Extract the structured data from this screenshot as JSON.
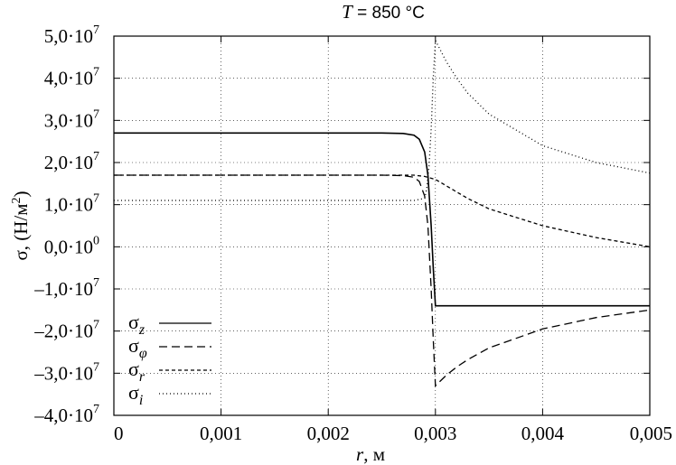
{
  "chart_data": {
    "type": "line",
    "title": "T = 850 °C",
    "title_parts": {
      "var": "T",
      "rest": " = 850 °C"
    },
    "xlabel": "r, м",
    "xlabel_parts": {
      "var": "r",
      "rest": ", м"
    },
    "ylabel": "σ, (Н/м²)",
    "ylabel_parts": {
      "prefix": "σ, (Н/м",
      "sup": "2",
      "suffix": ")"
    },
    "xlim": [
      0,
      0.005
    ],
    "ylim": [
      -40000000,
      50000000
    ],
    "grid": true,
    "legend_position": "bottom-left",
    "x_ticks": [
      {
        "value": 0,
        "label": "0"
      },
      {
        "value": 0.001,
        "label": "0,001"
      },
      {
        "value": 0.002,
        "label": "0,002"
      },
      {
        "value": 0.003,
        "label": "0,003"
      },
      {
        "value": 0.004,
        "label": "0,004"
      },
      {
        "value": 0.005,
        "label": "0,005"
      }
    ],
    "y_ticks": [
      {
        "value": 50000000,
        "mant": "5,0·10",
        "exp": "7"
      },
      {
        "value": 40000000,
        "mant": "4,0·10",
        "exp": "7"
      },
      {
        "value": 30000000,
        "mant": "3,0·10",
        "exp": "7"
      },
      {
        "value": 20000000,
        "mant": "2,0·10",
        "exp": "7"
      },
      {
        "value": 10000000,
        "mant": "1,0·10",
        "exp": "7"
      },
      {
        "value": 0,
        "mant": "0,0·10",
        "exp": "0"
      },
      {
        "value": -10000000,
        "mant": "–1,0·10",
        "exp": "7"
      },
      {
        "value": -20000000,
        "mant": "–2,0·10",
        "exp": "7"
      },
      {
        "value": -30000000,
        "mant": "–3,0·10",
        "exp": "7"
      },
      {
        "value": -40000000,
        "mant": "–4,0·10",
        "exp": "7"
      }
    ],
    "series": [
      {
        "name": "σz",
        "sym": "σ",
        "sub": "z",
        "dash": "",
        "x": [
          0,
          0.0005,
          0.001,
          0.0015,
          0.002,
          0.0025,
          0.0027,
          0.0028,
          0.00285,
          0.0029,
          0.00293,
          0.00296,
          0.00298,
          0.003,
          0.0035,
          0.004,
          0.0045,
          0.005
        ],
        "y": [
          27000000,
          27000000,
          27000000,
          27000000,
          27000000,
          27000000,
          26900000,
          26500000,
          25500000,
          22500000,
          17000000,
          5000000,
          -5000000,
          -14000000,
          -14000000,
          -14000000,
          -14000000,
          -14000000
        ]
      },
      {
        "name": "σφ",
        "sym": "σ",
        "sub": "φ",
        "dash": "9,5",
        "x": [
          0,
          0.0005,
          0.001,
          0.0015,
          0.002,
          0.0025,
          0.0027,
          0.0028,
          0.00285,
          0.0029,
          0.00293,
          0.00296,
          0.00298,
          0.003,
          0.0031,
          0.0032,
          0.0033,
          0.0035,
          0.004,
          0.0045,
          0.005
        ],
        "y": [
          17000000,
          17000000,
          17000000,
          17000000,
          17000000,
          17000000,
          16900000,
          16500000,
          15500000,
          12000000,
          5000000,
          -10000000,
          -22000000,
          -33000000,
          -30500000,
          -28500000,
          -26800000,
          -24000000,
          -19500000,
          -16800000,
          -15000000
        ]
      },
      {
        "name": "σr",
        "sym": "σ",
        "sub": "r",
        "dash": "4,3",
        "x": [
          0,
          0.001,
          0.002,
          0.0025,
          0.0028,
          0.0029,
          0.003,
          0.0031,
          0.0032,
          0.0033,
          0.0035,
          0.004,
          0.0045,
          0.005
        ],
        "y": [
          17000000,
          17000000,
          17000000,
          17000000,
          17000000,
          16700000,
          16000000,
          14500000,
          13000000,
          11500000,
          9000000,
          5000000,
          2200000,
          0
        ]
      },
      {
        "name": "σi",
        "sym": "σ",
        "sub": "i",
        "dash": "1,3",
        "x": [
          0,
          0.001,
          0.002,
          0.0025,
          0.0028,
          0.0029,
          0.00292,
          0.00294,
          0.00296,
          0.00298,
          0.003,
          0.0031,
          0.0032,
          0.0033,
          0.0035,
          0.004,
          0.0045,
          0.005
        ],
        "y": [
          11000000,
          11000000,
          11000000,
          11000000,
          11000000,
          11500000,
          14000000,
          19000000,
          28000000,
          40000000,
          49000000,
          44000000,
          40000000,
          36500000,
          31500000,
          24000000,
          20000000,
          17500000
        ]
      }
    ]
  }
}
